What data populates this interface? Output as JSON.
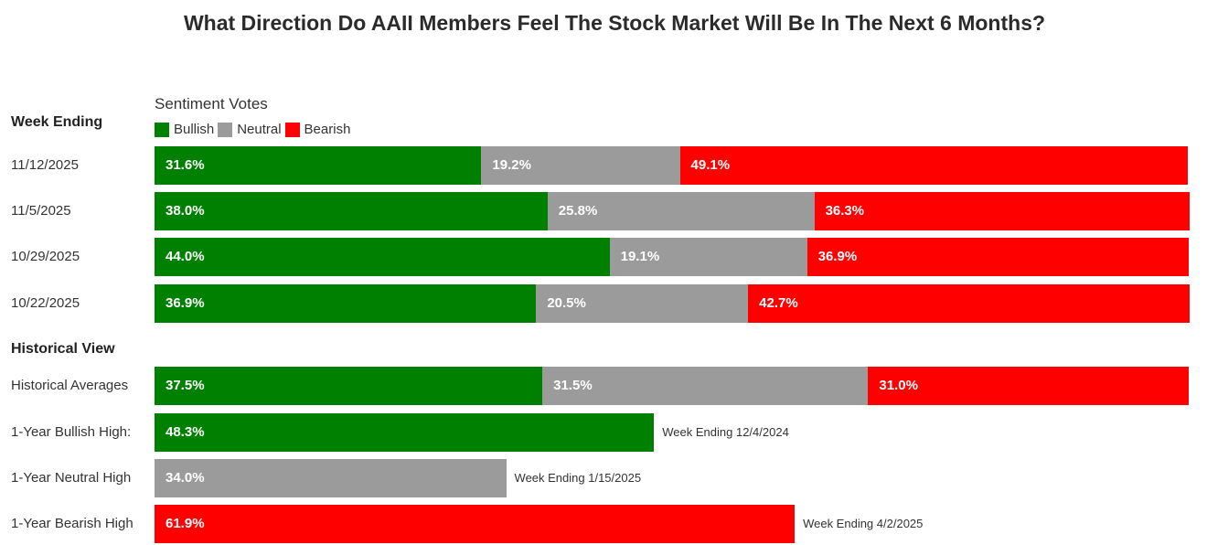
{
  "title": "What Direction Do AAII Members Feel The Stock Market Will Be In The Next 6 Months?",
  "legend_title": "Sentiment Votes",
  "colors": {
    "bullish": "#008000",
    "neutral": "#9b9b9b",
    "bearish": "#ff0000"
  },
  "chart_data": {
    "type": "bar",
    "orientation": "horizontal",
    "stacked": true,
    "title": "What Direction Do AAII Members Feel The Stock Market Will Be In The Next 6 Months?",
    "legend_title": "Sentiment Votes",
    "legend_placement": "top-left",
    "series": [
      {
        "name": "Bullish",
        "color": "#008000"
      },
      {
        "name": "Neutral",
        "color": "#9b9b9b"
      },
      {
        "name": "Bearish",
        "color": "#ff0000"
      }
    ],
    "weekly_header": "Week Ending",
    "weekly": [
      {
        "label": "11/12/2025",
        "values": [
          31.6,
          19.2,
          49.1
        ],
        "display": [
          "31.6%",
          "19.2%",
          "49.1%"
        ]
      },
      {
        "label": "11/5/2025",
        "values": [
          38.0,
          25.8,
          36.3
        ],
        "display": [
          "38.0%",
          "25.8%",
          "36.3%"
        ]
      },
      {
        "label": "10/29/2025",
        "values": [
          44.0,
          19.1,
          36.9
        ],
        "display": [
          "44.0%",
          "19.1%",
          "36.9%"
        ]
      },
      {
        "label": "10/22/2025",
        "values": [
          36.9,
          20.5,
          42.7
        ],
        "display": [
          "36.9%",
          "20.5%",
          "42.7%"
        ]
      }
    ],
    "historical_header": "Historical View",
    "historical_average": {
      "label": "Historical Averages",
      "values": [
        37.5,
        31.5,
        31.0
      ],
      "display": [
        "37.5%",
        "31.5%",
        "31.0%"
      ]
    },
    "highs": [
      {
        "label": "1-Year Bullish High:",
        "series": "Bullish",
        "value": 48.3,
        "display": "48.3%",
        "note": "Week Ending 12/4/2024"
      },
      {
        "label": "1-Year Neutral High",
        "series": "Neutral",
        "value": 34.0,
        "display": "34.0%",
        "note": "Week Ending 1/15/2025"
      },
      {
        "label": "1-Year Bearish High",
        "series": "Bearish",
        "value": 61.9,
        "display": "61.9%",
        "note": "Week Ending 4/2/2025"
      }
    ],
    "xlim": [
      0,
      100
    ]
  }
}
